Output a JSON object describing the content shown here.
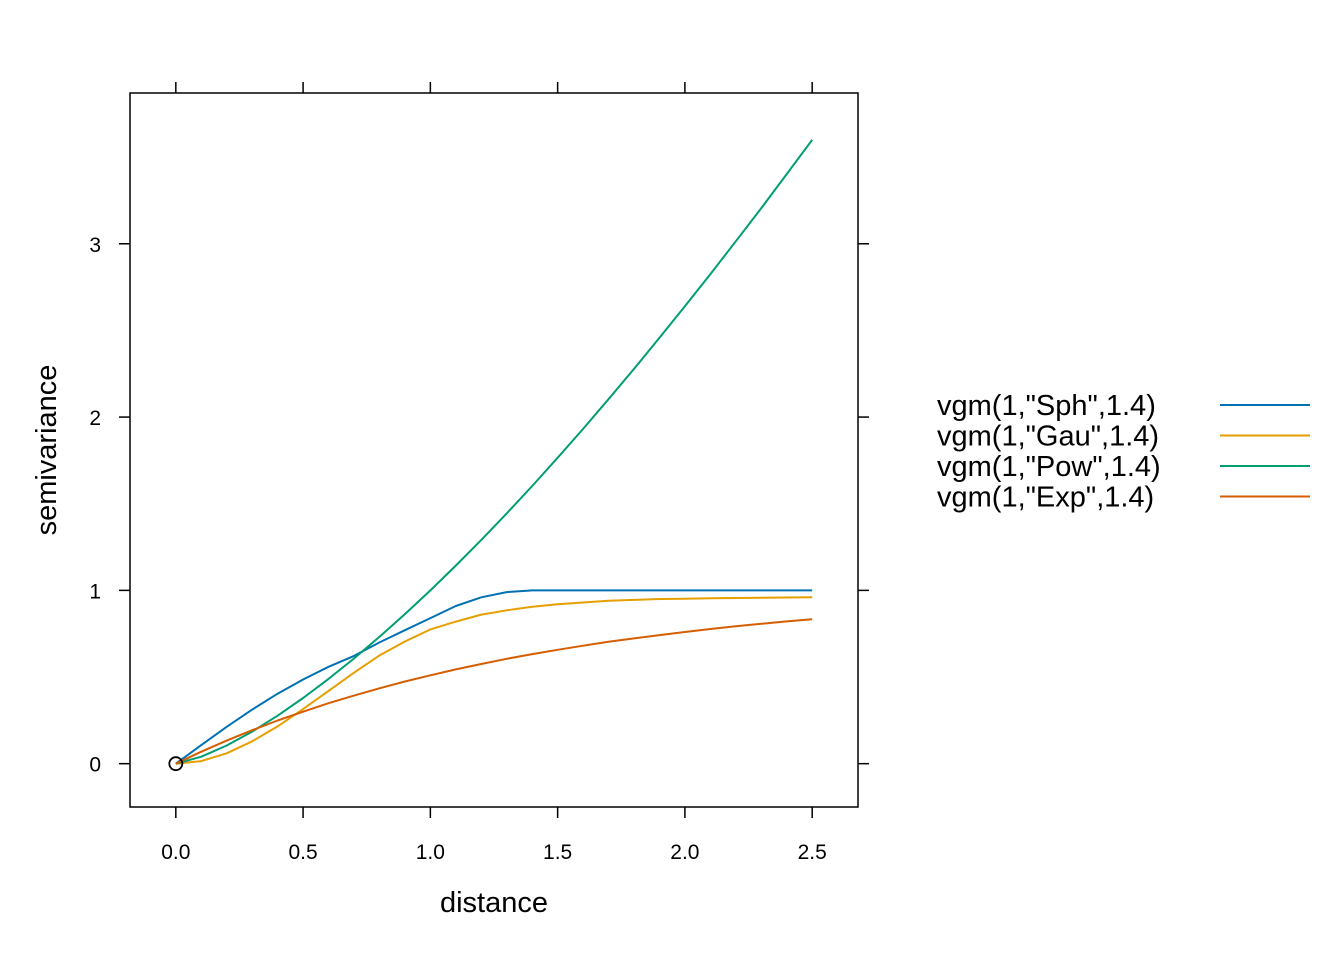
{
  "chart_data": {
    "type": "line",
    "title": "",
    "xlabel": "distance",
    "ylabel": "semivariance",
    "xlim": [
      -0.18,
      2.68
    ],
    "ylim": [
      -0.25,
      3.87
    ],
    "xticks": [
      0.0,
      0.5,
      1.0,
      1.5,
      2.0,
      2.5
    ],
    "xtick_labels": [
      "0.0",
      "0.5",
      "1.0",
      "1.5",
      "2.0",
      "2.5"
    ],
    "yticks": [
      0,
      1,
      2,
      3
    ],
    "ytick_labels": [
      "0",
      "1",
      "2",
      "3"
    ],
    "grid": false,
    "legend_position": "right",
    "x": [
      0.0,
      0.1,
      0.2,
      0.3,
      0.4,
      0.5,
      0.6,
      0.7,
      0.8,
      0.9,
      1.0,
      1.1,
      1.2,
      1.3,
      1.4,
      1.5,
      1.6,
      1.7,
      1.8,
      1.9,
      2.0,
      2.1,
      2.2,
      2.3,
      2.4,
      2.5
    ],
    "series": [
      {
        "name": "vgm(1,\"Sph\",1.4)",
        "color": "#0072B2",
        "values": [
          0.0,
          0.107,
          0.213,
          0.312,
          0.404,
          0.486,
          0.559,
          0.622,
          0.7,
          0.77,
          0.84,
          0.91,
          0.96,
          0.99,
          1.0,
          1.0,
          1.0,
          1.0,
          1.0,
          1.0,
          1.0,
          1.0,
          1.0,
          1.0,
          1.0,
          1.0
        ]
      },
      {
        "name": "vgm(1,\"Gau\",1.4)",
        "color": "#E69F00",
        "values": [
          0.0,
          0.015,
          0.06,
          0.129,
          0.215,
          0.315,
          0.42,
          0.525,
          0.625,
          0.705,
          0.775,
          0.82,
          0.86,
          0.885,
          0.905,
          0.92,
          0.93,
          0.94,
          0.945,
          0.95,
          0.952,
          0.954,
          0.956,
          0.958,
          0.959,
          0.96
        ]
      },
      {
        "name": "vgm(1,\"Pow\",1.4)",
        "color": "#009E73",
        "values": [
          0.0,
          0.04,
          0.105,
          0.185,
          0.277,
          0.379,
          0.489,
          0.607,
          0.732,
          0.863,
          1.0,
          1.143,
          1.291,
          1.444,
          1.602,
          1.765,
          1.932,
          2.103,
          2.278,
          2.458,
          2.639,
          2.825,
          3.014,
          3.206,
          3.402,
          3.6
        ]
      },
      {
        "name": "vgm(1,\"Exp\",1.4)",
        "color": "#D55E00",
        "values": [
          0.0,
          0.069,
          0.133,
          0.193,
          0.249,
          0.3,
          0.349,
          0.393,
          0.435,
          0.474,
          0.51,
          0.544,
          0.575,
          0.605,
          0.632,
          0.657,
          0.681,
          0.703,
          0.723,
          0.742,
          0.76,
          0.777,
          0.793,
          0.807,
          0.821,
          0.833
        ]
      }
    ],
    "point": {
      "x": 0,
      "y": 0,
      "shape": "open-circle"
    }
  }
}
